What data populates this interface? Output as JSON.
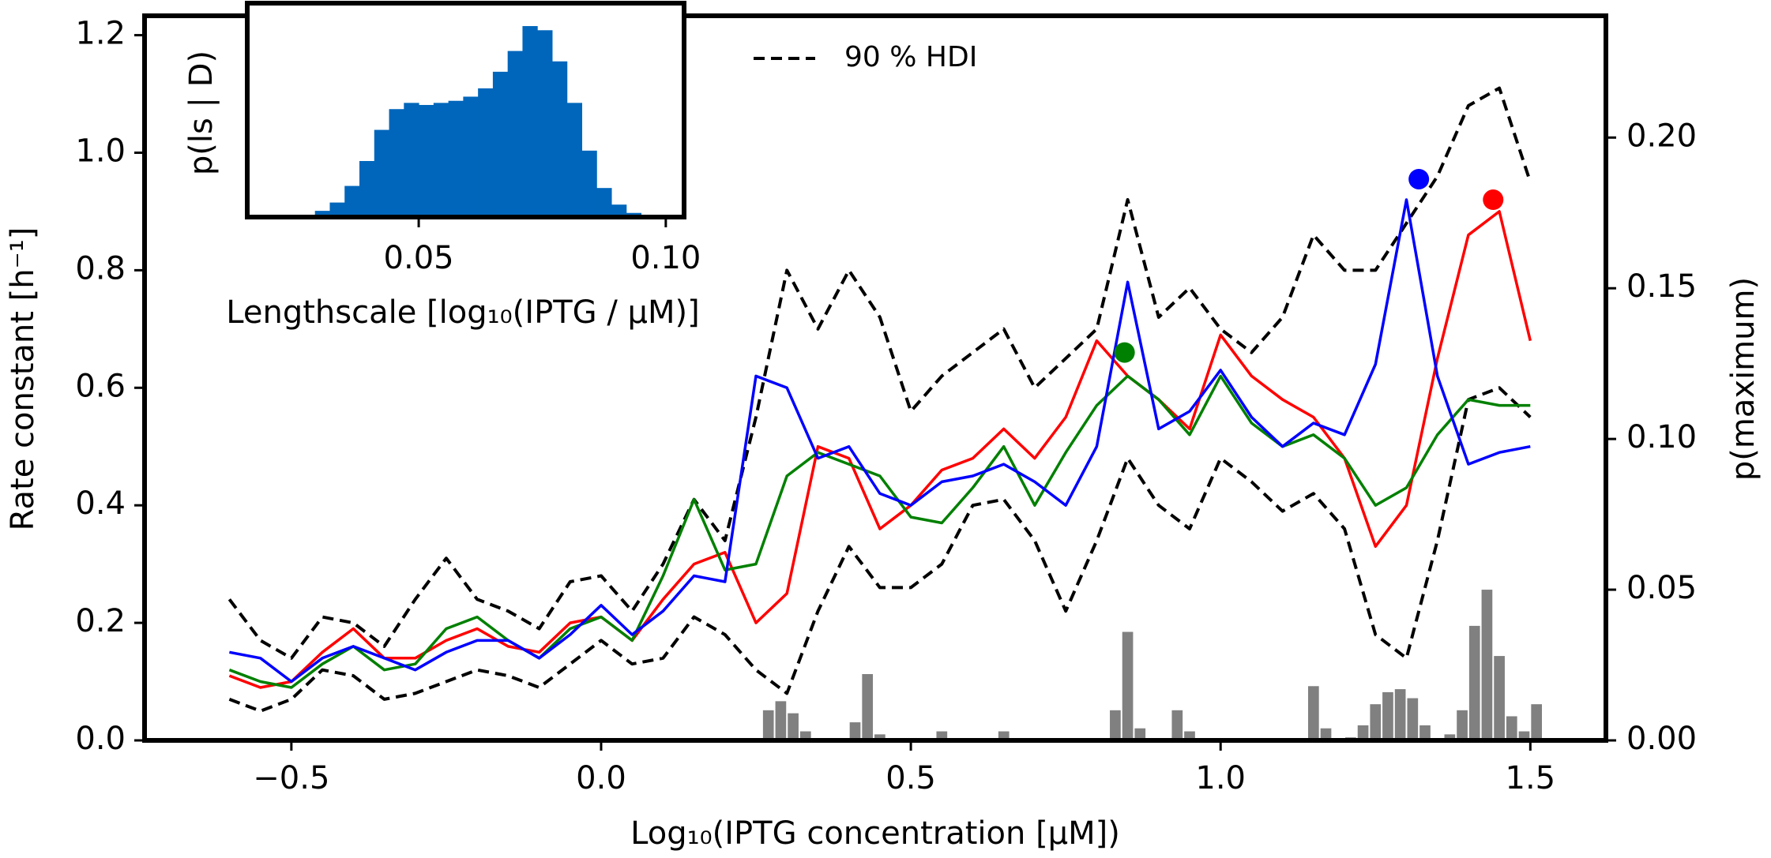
{
  "chart_data": [
    {
      "type": "line",
      "xlabel": "Log₁₀(IPTG concentration [µM])",
      "ylabel": "Rate constant [h⁻¹]",
      "y2label": "p(maximum)",
      "xlim": [
        -0.737,
        1.622
      ],
      "ylim": [
        0,
        1.233
      ],
      "y2lim": [
        0,
        0.2404
      ],
      "xticks": [
        {
          "value": -0.5,
          "label": "−0.5"
        },
        {
          "value": 0,
          "label": "0.0"
        },
        0.5,
        {
          "value": 1,
          "label": "1.0"
        },
        1.5
      ],
      "yticks": [
        {
          "value": 0,
          "label": "0.0"
        },
        0.2,
        0.4,
        0.6,
        0.8,
        {
          "value": 1,
          "label": "1.0"
        },
        1.2
      ],
      "y2ticks": [
        {
          "value": 0,
          "label": "0.00"
        },
        0.05,
        {
          "value": 0.1,
          "label": "0.10"
        },
        0.15,
        {
          "value": 0.2,
          "label": "0.20"
        }
      ],
      "x": [
        -0.6,
        -0.55,
        -0.5,
        -0.45,
        -0.4,
        -0.35,
        -0.3,
        -0.25,
        -0.2,
        -0.15,
        -0.1,
        -0.05,
        0,
        0.05,
        0.1,
        0.15,
        0.2,
        0.25,
        0.3,
        0.35,
        0.4,
        0.45,
        0.5,
        0.55,
        0.6,
        0.65,
        0.7,
        0.75,
        0.8,
        0.85,
        0.9,
        0.95,
        1.0,
        1.05,
        1.1,
        1.15,
        1.2,
        1.25,
        1.3,
        1.35,
        1.4,
        1.45,
        1.5
      ],
      "series": [
        {
          "color": "#ff0000",
          "values": [
            0.11,
            0.09,
            0.1,
            0.15,
            0.19,
            0.14,
            0.14,
            0.17,
            0.19,
            0.16,
            0.15,
            0.2,
            0.21,
            0.17,
            0.24,
            0.3,
            0.32,
            0.2,
            0.25,
            0.5,
            0.48,
            0.36,
            0.4,
            0.46,
            0.48,
            0.53,
            0.48,
            0.55,
            0.68,
            0.62,
            0.58,
            0.53,
            0.69,
            0.62,
            0.58,
            0.55,
            0.48,
            0.33,
            0.4,
            0.65,
            0.86,
            0.9,
            0.68
          ]
        },
        {
          "color": "#008000",
          "values": [
            0.12,
            0.1,
            0.09,
            0.13,
            0.16,
            0.12,
            0.13,
            0.19,
            0.21,
            0.17,
            0.14,
            0.19,
            0.21,
            0.17,
            0.28,
            0.41,
            0.29,
            0.3,
            0.45,
            0.49,
            0.47,
            0.45,
            0.38,
            0.37,
            0.43,
            0.5,
            0.4,
            0.49,
            0.57,
            0.62,
            0.58,
            0.52,
            0.62,
            0.54,
            0.5,
            0.52,
            0.48,
            0.4,
            0.43,
            0.52,
            0.58,
            0.57,
            0.57
          ]
        },
        {
          "color": "#0000ff",
          "values": [
            0.15,
            0.14,
            0.1,
            0.14,
            0.16,
            0.14,
            0.12,
            0.15,
            0.17,
            0.17,
            0.14,
            0.18,
            0.23,
            0.18,
            0.22,
            0.28,
            0.27,
            0.62,
            0.6,
            0.48,
            0.5,
            0.42,
            0.4,
            0.44,
            0.45,
            0.47,
            0.44,
            0.4,
            0.5,
            0.78,
            0.53,
            0.56,
            0.63,
            0.55,
            0.5,
            0.54,
            0.52,
            0.64,
            0.92,
            0.62,
            0.47,
            0.49,
            0.5
          ]
        }
      ],
      "hdi": {
        "name": "90 % HDI",
        "color": "#000000",
        "dashed": true,
        "upper": [
          0.24,
          0.17,
          0.14,
          0.21,
          0.2,
          0.16,
          0.24,
          0.31,
          0.24,
          0.22,
          0.19,
          0.27,
          0.28,
          0.22,
          0.3,
          0.41,
          0.34,
          0.55,
          0.8,
          0.7,
          0.8,
          0.72,
          0.56,
          0.62,
          0.66,
          0.7,
          0.6,
          0.65,
          0.7,
          0.92,
          0.72,
          0.77,
          0.7,
          0.66,
          0.72,
          0.86,
          0.8,
          0.8,
          0.88,
          0.96,
          1.08,
          1.11,
          0.95
        ],
        "lower": [
          0.07,
          0.05,
          0.07,
          0.12,
          0.11,
          0.07,
          0.08,
          0.1,
          0.12,
          0.11,
          0.09,
          0.13,
          0.17,
          0.13,
          0.14,
          0.21,
          0.18,
          0.12,
          0.08,
          0.22,
          0.33,
          0.26,
          0.26,
          0.3,
          0.4,
          0.41,
          0.34,
          0.22,
          0.34,
          0.48,
          0.4,
          0.36,
          0.48,
          0.44,
          0.39,
          0.42,
          0.36,
          0.18,
          0.14,
          0.34,
          0.58,
          0.6,
          0.55
        ]
      },
      "maxima": [
        {
          "x": 1.32,
          "y": 0.955,
          "color": "#0000ff"
        },
        {
          "x": 1.44,
          "y": 0.92,
          "color": "#ff0000"
        },
        {
          "x": 0.845,
          "y": 0.66,
          "color": "#008000"
        }
      ],
      "argmax_hist": {
        "axis": "y2",
        "color": "#808080",
        "bins": [
          0.26,
          0.28,
          0.3,
          0.32,
          0.34,
          0.36,
          0.38,
          0.4,
          0.42,
          0.44,
          0.46,
          0.48,
          0.5,
          0.52,
          0.54,
          0.56,
          0.58,
          0.6,
          0.62,
          0.64,
          0.66,
          0.68,
          0.7,
          0.72,
          0.74,
          0.76,
          0.78,
          0.8,
          0.82,
          0.84,
          0.86,
          0.88,
          0.9,
          0.92,
          0.94,
          0.96,
          0.98,
          1.0,
          1.02,
          1.04,
          1.06,
          1.08,
          1.1,
          1.12,
          1.14,
          1.16,
          1.18,
          1.2,
          1.22,
          1.24,
          1.26,
          1.28,
          1.3,
          1.32,
          1.34,
          1.36,
          1.38,
          1.4,
          1.42,
          1.44,
          1.46,
          1.48,
          1.5,
          1.52
        ],
        "counts": [
          0.01,
          0.013,
          0.009,
          0.003,
          0,
          0,
          0,
          0.006,
          0.022,
          0.002,
          0,
          0,
          0,
          0,
          0.003,
          0,
          0,
          0,
          0,
          0.003,
          0,
          0,
          0,
          0,
          0,
          0,
          0,
          0,
          0.01,
          0.036,
          0.004,
          0,
          0,
          0.01,
          0.003,
          0,
          0,
          0,
          0,
          0,
          0,
          0,
          0,
          0,
          0.018,
          0.004,
          0,
          0.001,
          0.005,
          0.012,
          0.016,
          0.017,
          0.014,
          0.005,
          0,
          0.002,
          0.01,
          0.038,
          0.05,
          0.028,
          0.008,
          0.003,
          0.012
        ]
      },
      "legend": "upper center"
    },
    {
      "type": "histogram",
      "xlabel": "Lengthscale [log₁₀(IPTG / µM)]",
      "ylabel": "p(ls  |  D)",
      "xlim": [
        0.0153,
        0.1037
      ],
      "ylim": [
        0,
        1
      ],
      "xticks": [
        0.05,
        {
          "value": 0.1,
          "label": "0.10"
        }
      ],
      "color": "#0066bb",
      "bins": [
        0.026,
        0.029,
        0.032,
        0.035,
        0.038,
        0.041,
        0.044,
        0.047,
        0.05,
        0.053,
        0.056,
        0.059,
        0.062,
        0.065,
        0.068,
        0.071,
        0.074,
        0.077,
        0.08,
        0.083,
        0.086,
        0.089,
        0.092,
        0.095,
        0.098
      ],
      "counts": [
        0.01,
        0.03,
        0.07,
        0.15,
        0.27,
        0.42,
        0.52,
        0.55,
        0.54,
        0.55,
        0.56,
        0.58,
        0.62,
        0.7,
        0.8,
        0.92,
        0.9,
        0.75,
        0.55,
        0.32,
        0.14,
        0.06,
        0.02,
        0.005
      ]
    }
  ]
}
